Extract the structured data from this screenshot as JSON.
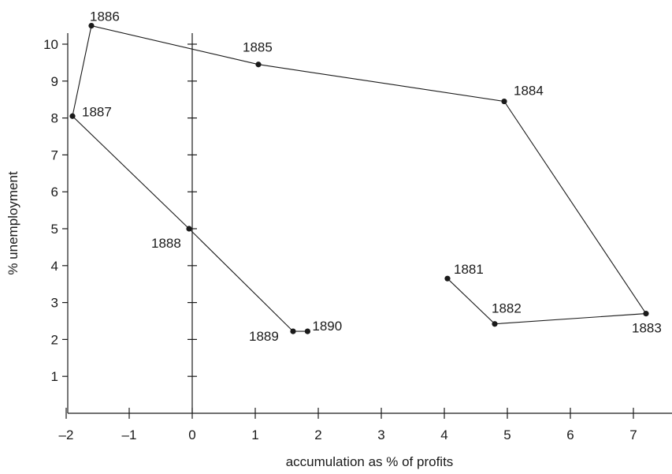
{
  "chart_data": {
    "type": "line",
    "xlabel": "accumulation as % of profits",
    "ylabel": "% unemployment",
    "xlim": [
      -2.2,
      7.6
    ],
    "ylim": [
      0,
      10.4
    ],
    "x_ticks": [
      -2,
      -1,
      0,
      1,
      2,
      3,
      4,
      5,
      6,
      7
    ],
    "x_tick_labels": [
      "–2",
      "–1",
      "0",
      "1",
      "2",
      "3",
      "4",
      "5",
      "6",
      "7"
    ],
    "y_ticks": [
      1,
      2,
      3,
      4,
      5,
      6,
      7,
      8,
      9,
      10
    ],
    "y_tick_labels": [
      "1",
      "2",
      "3",
      "4",
      "5",
      "6",
      "7",
      "8",
      "9",
      "10"
    ],
    "grid": false,
    "line_color": "#1a1a1a",
    "points": [
      {
        "label": "1881",
        "x": 4.05,
        "y": 3.65
      },
      {
        "label": "1882",
        "x": 4.8,
        "y": 2.42
      },
      {
        "label": "1883",
        "x": 7.2,
        "y": 2.7
      },
      {
        "label": "1884",
        "x": 4.95,
        "y": 8.45
      },
      {
        "label": "1885",
        "x": 1.05,
        "y": 9.45
      },
      {
        "label": "1886",
        "x": -1.6,
        "y": 10.5
      },
      {
        "label": "1887",
        "x": -1.9,
        "y": 8.05
      },
      {
        "label": "1888",
        "x": -0.05,
        "y": 5.0
      },
      {
        "label": "1889",
        "x": 1.6,
        "y": 2.22
      },
      {
        "label": "1890",
        "x": 1.83,
        "y": 2.22
      }
    ]
  }
}
